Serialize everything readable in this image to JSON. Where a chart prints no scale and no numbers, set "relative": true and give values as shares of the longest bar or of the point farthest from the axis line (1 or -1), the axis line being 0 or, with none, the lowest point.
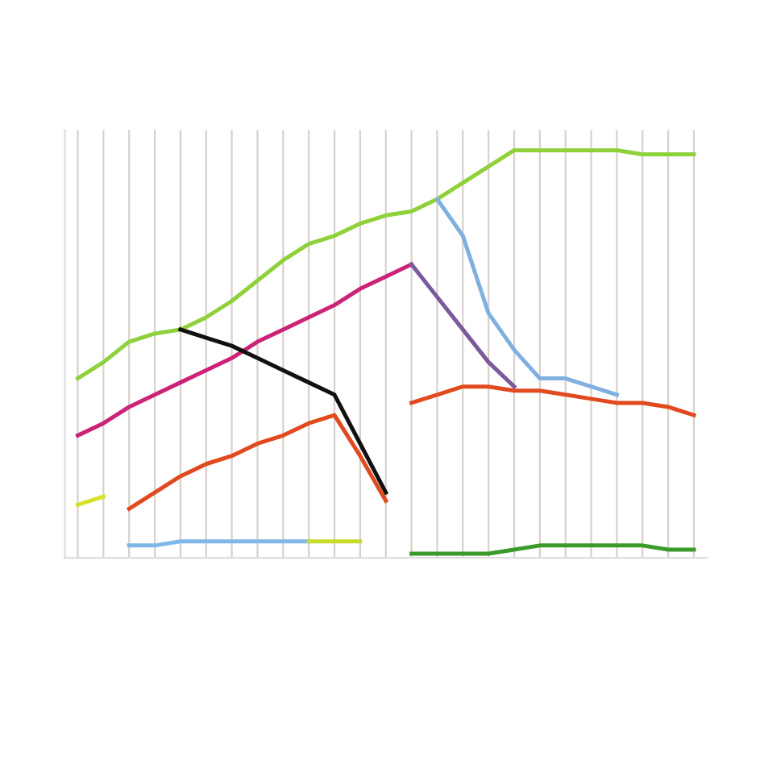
{
  "chart_data": {
    "type": "line",
    "relative": true,
    "grid": "x",
    "marker": "none",
    "line_style": "solid",
    "categories": [
      null,
      null,
      null,
      null,
      null,
      null,
      null,
      null,
      null,
      null,
      null,
      null,
      null,
      null,
      null,
      null,
      null,
      null,
      null,
      null,
      null,
      null,
      null,
      null,
      null
    ],
    "series": [
      {
        "color": "#8fd13a",
        "values": [
          0.44,
          0.48,
          0.53,
          0.55,
          0.56,
          0.59,
          0.63,
          0.68,
          0.73,
          0.77,
          0.79,
          0.82,
          0.84,
          0.85,
          0.88,
          0.92,
          0.96,
          1.0,
          1.0,
          1.0,
          1.0,
          1.0,
          0.99,
          0.99,
          0.99
        ]
      },
      {
        "color": "#cc2277",
        "values": [
          0.3,
          0.33,
          0.37,
          0.4,
          0.43,
          0.46,
          0.49,
          0.53,
          0.56,
          0.59,
          0.62,
          0.66,
          0.69,
          0.72,
          null,
          null,
          null,
          null,
          null,
          null,
          null,
          null,
          null,
          null,
          null
        ]
      },
      {
        "color": "#7a5a9a",
        "values": [
          null,
          null,
          null,
          null,
          null,
          null,
          null,
          null,
          null,
          null,
          null,
          null,
          null,
          0.72,
          0.64,
          0.56,
          0.48,
          0.42,
          null,
          null,
          null,
          null,
          null,
          null,
          null
        ]
      },
      {
        "color": "#7fb0e0",
        "values": [
          null,
          null,
          null,
          null,
          null,
          null,
          null,
          null,
          null,
          null,
          null,
          null,
          null,
          null,
          0.88,
          0.79,
          0.6,
          0.51,
          0.44,
          0.44,
          0.42,
          0.4,
          null,
          null,
          null
        ]
      },
      {
        "color": "#111111",
        "values": [
          null,
          null,
          null,
          null,
          0.56,
          0.54,
          0.52,
          0.49,
          0.46,
          0.43,
          0.4,
          0.28,
          0.16,
          null,
          null,
          null,
          null,
          null,
          null,
          null,
          null,
          null,
          null,
          null,
          null
        ]
      },
      {
        "color": "#e04a1e",
        "values": [
          null,
          null,
          0.12,
          0.16,
          0.2,
          0.23,
          0.25,
          0.28,
          0.3,
          0.33,
          0.35,
          0.25,
          0.14,
          null,
          null,
          null,
          null,
          null,
          null,
          null,
          null,
          null,
          null,
          null,
          null
        ]
      },
      {
        "color": "#e04a1e",
        "values": [
          null,
          null,
          null,
          null,
          null,
          null,
          null,
          null,
          null,
          null,
          null,
          null,
          null,
          0.38,
          0.4,
          0.42,
          0.42,
          0.41,
          0.41,
          0.4,
          0.39,
          0.38,
          0.38,
          0.37,
          0.35
        ]
      },
      {
        "color": "#d8e02a",
        "values": [
          0.13,
          0.15,
          null,
          null,
          null,
          null,
          null,
          null,
          null,
          null,
          null,
          null,
          null,
          null,
          null,
          null,
          null,
          null,
          null,
          null,
          null,
          null,
          null,
          null,
          null
        ]
      },
      {
        "color": "#7fb8e8",
        "values": [
          null,
          null,
          0.03,
          0.03,
          0.04,
          0.04,
          0.04,
          0.04,
          0.04,
          0.04,
          null,
          null,
          null,
          null,
          null,
          null,
          null,
          null,
          null,
          null,
          null,
          null,
          null,
          null,
          null
        ]
      },
      {
        "color": "#c8dc30",
        "values": [
          null,
          null,
          null,
          null,
          null,
          null,
          null,
          null,
          null,
          0.04,
          0.04,
          0.04,
          null,
          null,
          null,
          null,
          null,
          null,
          null,
          null,
          null,
          null,
          null,
          null,
          null
        ]
      },
      {
        "color": "#3a9a2a",
        "values": [
          null,
          null,
          null,
          null,
          null,
          null,
          null,
          null,
          null,
          null,
          null,
          null,
          null,
          0.01,
          0.01,
          0.01,
          0.01,
          0.02,
          0.03,
          0.03,
          0.03,
          0.03,
          0.03,
          0.02,
          0.02
        ]
      }
    ]
  }
}
